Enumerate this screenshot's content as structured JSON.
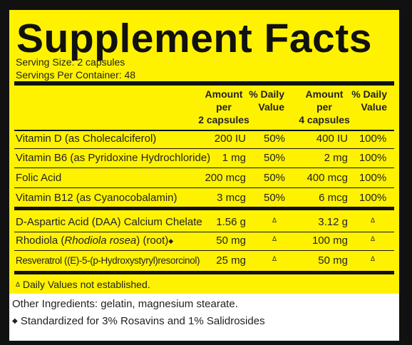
{
  "panel": {
    "title": "Supplement Facts",
    "serving_size": "Serving Size: 2 capsules",
    "servings_per_container": "Servings Per Container: 48",
    "header": {
      "amount_1": [
        "Amount",
        "per",
        "2 capsules"
      ],
      "dv_1": [
        "% Daily",
        "Value"
      ],
      "amount_2": [
        "Amount",
        "per",
        "4 capsules"
      ],
      "dv_2": [
        "% Daily",
        "Value"
      ]
    },
    "rows": [
      {
        "name": "Vitamin D (as Cholecalciferol)",
        "amount_1": "200 IU",
        "dv_1": "50%",
        "amount_2": "400 IU",
        "dv_2": "100%"
      },
      {
        "name": "Vitamin B6 (as Pyridoxine Hydrochloride)",
        "amount_1": "1 mg",
        "dv_1": "50%",
        "amount_2": "2 mg",
        "dv_2": "100%"
      },
      {
        "name": "Folic Acid",
        "amount_1": "200 mcg",
        "dv_1": "50%",
        "amount_2": "400 mcg",
        "dv_2": "100%"
      },
      {
        "name": "Vitamin B12 (as Cyanocobalamin)",
        "amount_1": "3 mcg",
        "dv_1": "50%",
        "amount_2": "6 mcg",
        "dv_2": "100%"
      },
      {
        "name": "D-Aspartic Acid (DAA) Calcium Chelate",
        "amount_1": "1.56 g",
        "dv_1": "Δ",
        "amount_2": "3.12 g",
        "dv_2": "Δ"
      },
      {
        "name": "Rhodiola (",
        "name_italic": "Rhodiola rosea",
        "name_end": ") (root)",
        "name_mark": "◆",
        "amount_1": "50 mg",
        "dv_1": "Δ",
        "amount_2": "100 mg",
        "dv_2": "Δ"
      },
      {
        "name": "Resveratrol ((E)-5-(p-Hydroxystyryl)resorcinol)",
        "amount_1": "25 mg",
        "dv_1": "Δ",
        "amount_2": "50 mg",
        "dv_2": "Δ"
      }
    ],
    "footnote": {
      "symbol": "Δ",
      "text": "Daily Values not established."
    }
  },
  "other_ingredients": "Other Ingredients: gelatin, magnesium stearate.",
  "note": {
    "symbol": "◆",
    "text": "Standardized for 3% Rosavins and 1% Salidrosides"
  }
}
